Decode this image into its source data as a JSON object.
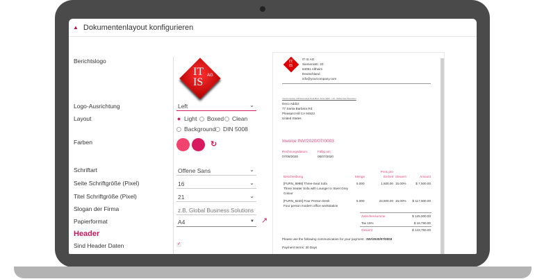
{
  "window": {
    "title": "Dokumentenlayout konfigurieren",
    "icon": "home-icon"
  },
  "form": {
    "logo_label": "Berichtslogo",
    "logo_text": {
      "line1": "IT",
      "line2": "IS",
      "suffix": "AG"
    },
    "logo_alignment": {
      "label": "Logo-Ausrichtung",
      "value": "Left"
    },
    "layout": {
      "label": "Layout",
      "options": [
        "Light",
        "Boxed",
        "Clean",
        "Background",
        "DIN 5008"
      ],
      "selected": "Light"
    },
    "colors": {
      "label": "Farben",
      "primary": "#f0446f",
      "secondary": "#d81b60",
      "refresh_icon": "refresh-icon"
    },
    "font": {
      "label": "Schriftart",
      "value": "Offene Sans"
    },
    "page_font_size": {
      "label": "Seite Schriftgröße (Pixel)",
      "value": "16"
    },
    "title_font_size": {
      "label": "Titel Schriftgröße (Pixel)",
      "value": "21"
    },
    "slogan": {
      "label": "Slogan der Firma",
      "placeholder": "z.B. Global Business Solutions"
    },
    "paper_format": {
      "label": "Papierformat",
      "value": "A4",
      "link_icon": "external-link-icon"
    },
    "header_section": "Header",
    "header_data": {
      "label": "Sind Header Daten",
      "checked": true
    }
  },
  "preview": {
    "company": [
      "IT IS AG",
      "Siemensstr. 20",
      "84051 Altheim",
      "Deutschland",
      "info@yourcompany.com"
    ],
    "sender_line": "YourCompany, 235 Executive Park Blvd, Suite 9400 - US - 94134 San Francisco",
    "recipient": [
      "Deco Addict",
      "77 Santa Barbara Rd",
      "Pleasant Hill CA 94523",
      "United States"
    ],
    "invoice_title": "Invoice INV/2020/07/0003",
    "invoice_date_label": "Rechnungsdatum:",
    "invoice_date": "07/08/2020",
    "due_label": "Fällig am:",
    "due_date": "08/07/2020",
    "columns": [
      "Beschreibung",
      "Menge",
      "Preis pro Einheit",
      "Steuern",
      "Amount"
    ],
    "lines": [
      {
        "desc": "[FURN_8999] Three-Seat Sofa",
        "desc2": "Three Seater Sofa with Lounger in Steel Grey Colour",
        "qty": "5.000",
        "price": "1,500.00",
        "tax": "15.00%",
        "amount": "$ 7,500.00"
      },
      {
        "desc": "[FURN_8220] Four Person Desk",
        "desc2": "Four person modern office workstation",
        "qty": "5.000",
        "price": "23,500.00",
        "tax": "15.00%",
        "amount": "$ 117,500.00"
      }
    ],
    "subtotal_label": "Zwischensumme",
    "subtotal": "$ 125,000.00",
    "tax_label": "Tax 15%",
    "tax": "$ 18,750.00",
    "total_label": "Gesamt",
    "total": "$ 143,750.00",
    "communication": "Please use the following communication for your payment :",
    "communication_ref": "INV/2020/07/0003",
    "payment_terms": "Payment terms: 30 Days"
  }
}
